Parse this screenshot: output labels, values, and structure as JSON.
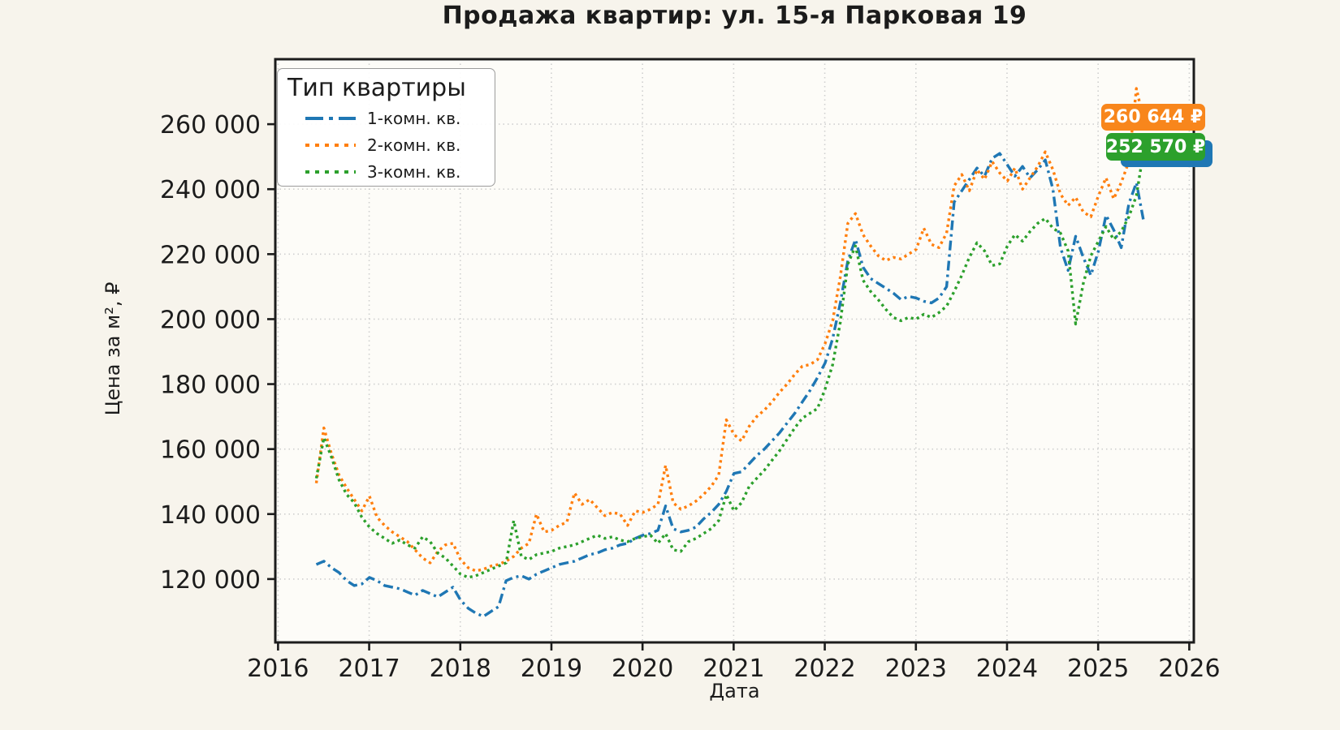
{
  "chart_data": {
    "type": "line",
    "title": "Продажа квартир: ул. 15-я Парковая 19",
    "xlabel": "Дата",
    "ylabel": "Цена за м², ₽",
    "xlim": [
      2015.97,
      2026.05
    ],
    "ylim": [
      100500,
      280000
    ],
    "x_ticks": [
      2016,
      2017,
      2018,
      2019,
      2020,
      2021,
      2022,
      2023,
      2024,
      2025,
      2026
    ],
    "y_ticks": [
      120000,
      140000,
      160000,
      180000,
      200000,
      220000,
      240000,
      260000
    ],
    "grid": "dotted",
    "legend": {
      "title": "Тип квартиры",
      "position": "upper left",
      "items": [
        {
          "label": "1-комн. кв.",
          "color": "#1f77b4",
          "linestyle": "dashdot"
        },
        {
          "label": "2-комн. кв.",
          "color": "#ff7f0e",
          "linestyle": "dotted"
        },
        {
          "label": "3-комн. кв.",
          "color": "#2ca02c",
          "linestyle": "dotted"
        }
      ]
    },
    "annotations": [
      {
        "label": "260 644 ₽",
        "value": 260644,
        "color": "#f8861c"
      },
      {
        "label": "252 570 ₽",
        "value": 252570,
        "color": "#2ca02c"
      },
      {
        "label": "",
        "color": "#1f77b4"
      }
    ],
    "series": [
      {
        "name": "1-комн. кв.",
        "color": "#1f77b4",
        "linestyle": "dashdot",
        "x_start": 2016.42,
        "x_step_years": 0.083333,
        "values": [
          124500,
          125500,
          123500,
          122000,
          119500,
          118000,
          118500,
          120500,
          119500,
          118000,
          117500,
          117000,
          116000,
          115000,
          116500,
          115500,
          114500,
          116000,
          117500,
          113500,
          111000,
          109500,
          108500,
          110000,
          111500,
          119500,
          120500,
          121000,
          120000,
          121500,
          122500,
          123500,
          124500,
          125000,
          125500,
          126500,
          127500,
          128000,
          129000,
          129500,
          130500,
          131000,
          132500,
          133500,
          134000,
          135000,
          142500,
          135500,
          134500,
          135000,
          136000,
          138500,
          140500,
          143000,
          147000,
          152500,
          153000,
          155500,
          158000,
          160000,
          162500,
          165000,
          168000,
          171000,
          174500,
          178000,
          182000,
          186500,
          194000,
          205000,
          218000,
          224500,
          216000,
          212500,
          211000,
          209500,
          208000,
          206000,
          207000,
          206500,
          205500,
          205000,
          206500,
          210000,
          236000,
          239500,
          243000,
          246500,
          244000,
          249500,
          251000,
          247500,
          244000,
          247000,
          243500,
          246000,
          249000,
          240000,
          222000,
          215000,
          225500,
          219000,
          213500,
          221000,
          232000,
          227500,
          222000,
          235500,
          242000,
          229500
        ]
      },
      {
        "name": "2-комн. кв.",
        "color": "#ff7f0e",
        "linestyle": "dotted",
        "x_start": 2016.42,
        "x_step_years": 0.083333,
        "values": [
          149500,
          166500,
          158500,
          152000,
          148000,
          144500,
          141000,
          145500,
          139000,
          136500,
          134500,
          133000,
          131500,
          129000,
          126500,
          125000,
          128500,
          130500,
          131000,
          126000,
          123500,
          122500,
          123000,
          124000,
          124500,
          125500,
          127000,
          129500,
          131000,
          140000,
          134500,
          135000,
          136500,
          137500,
          146500,
          143000,
          144500,
          142000,
          139500,
          140500,
          140000,
          136500,
          141000,
          140500,
          141500,
          143000,
          155000,
          143500,
          141500,
          142500,
          144000,
          146000,
          148500,
          152000,
          169000,
          164500,
          162500,
          167000,
          170000,
          172000,
          174500,
          177500,
          180000,
          183000,
          185500,
          186000,
          187500,
          192500,
          199500,
          213000,
          229500,
          232500,
          226000,
          222500,
          219500,
          218000,
          219000,
          218500,
          220000,
          221500,
          228000,
          223000,
          222000,
          226500,
          241000,
          244500,
          239500,
          246000,
          243000,
          248500,
          245000,
          242500,
          246500,
          240000,
          243500,
          247000,
          251500,
          246000,
          238500,
          235000,
          237500,
          233000,
          231500,
          238000,
          243500,
          237000,
          242000,
          248500,
          271000,
          260644
        ]
      },
      {
        "name": "3-комн. кв.",
        "color": "#2ca02c",
        "linestyle": "dotted",
        "x_start": 2016.42,
        "x_step_years": 0.083333,
        "values": [
          151000,
          163500,
          157500,
          150500,
          146000,
          143500,
          139000,
          136000,
          134000,
          132500,
          131000,
          132000,
          130500,
          129500,
          133000,
          131500,
          128000,
          126500,
          124000,
          121500,
          120500,
          121000,
          122000,
          123000,
          124000,
          125000,
          138000,
          127000,
          126000,
          127500,
          128000,
          128500,
          129500,
          130000,
          130500,
          131500,
          132500,
          133500,
          132500,
          133000,
          132000,
          131500,
          132500,
          133000,
          133500,
          131000,
          134000,
          129000,
          128500,
          131500,
          132500,
          134000,
          135500,
          138000,
          146000,
          141000,
          143500,
          148500,
          151000,
          153500,
          156500,
          159500,
          163000,
          166500,
          169500,
          171000,
          172500,
          178500,
          186000,
          199000,
          217000,
          222500,
          212000,
          208500,
          206000,
          203000,
          200500,
          199500,
          200500,
          200000,
          201500,
          200500,
          202000,
          204000,
          208500,
          213500,
          219000,
          223500,
          221000,
          216500,
          217000,
          222500,
          226000,
          224000,
          227000,
          229500,
          231000,
          228000,
          226500,
          221000,
          198500,
          211000,
          219500,
          224000,
          228500,
          224500,
          227000,
          231500,
          238000,
          252570
        ]
      }
    ]
  }
}
